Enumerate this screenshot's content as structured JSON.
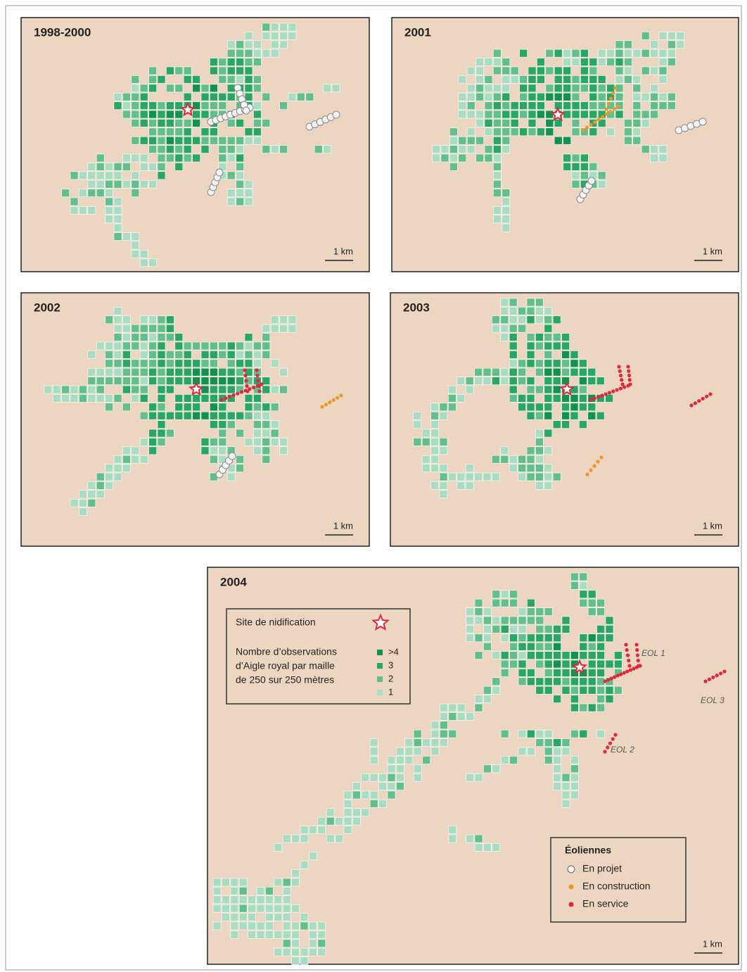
{
  "panels": [
    {
      "title": "1998-2000",
      "scale": "1 km"
    },
    {
      "title": "2001",
      "scale": "1 km"
    },
    {
      "title": "2002",
      "scale": "1 km"
    },
    {
      "title": "2003",
      "scale": "1 km"
    },
    {
      "title": "2004",
      "scale": "1 km"
    }
  ],
  "legend": {
    "nest": "Site de nidification",
    "obs_lines": [
      "Nombre d’observations",
      "d’Aigle royal par maille",
      "de 250 sur 250 mètres"
    ],
    "obs_classes": [
      ">4",
      "3",
      "2",
      "1"
    ],
    "turbines_title": "Éoliennes",
    "turbines": [
      "En projet",
      "En construction",
      "En service"
    ]
  },
  "labels": [
    "EOL 1",
    "EOL 2",
    "EOL 3"
  ]
}
